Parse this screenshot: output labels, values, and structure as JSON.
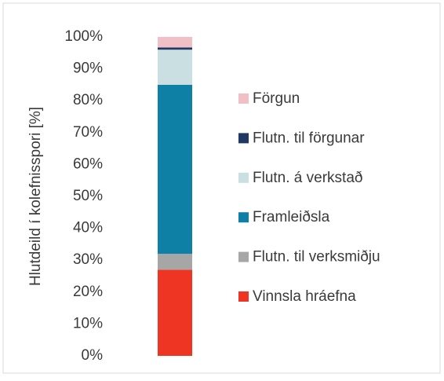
{
  "chart_data": {
    "type": "stacked_bar",
    "y_label": "Hlutdeild í kolefnisspori [%]",
    "categories": [
      null
    ],
    "series": [
      {
        "name": "Vinnsla hráefna",
        "color": "#ee3524",
        "values": [
          27
        ]
      },
      {
        "name": "Flutn. til verksmiðju",
        "color": "#a6a6a6",
        "values": [
          5
        ]
      },
      {
        "name": "Framleiðsla",
        "color": "#0e7fa5",
        "values": [
          53
        ]
      },
      {
        "name": "Flutn. á verkstað",
        "color": "#c9dfe2",
        "values": [
          11
        ]
      },
      {
        "name": "Flutn. til förgunar",
        "color": "#1f3864",
        "values": [
          0.7
        ]
      },
      {
        "name": "Förgun",
        "color": "#f0c0c6",
        "values": [
          3.3
        ]
      }
    ],
    "ylim": [
      0,
      100
    ],
    "yticks": [
      {
        "value": 0,
        "label": "0%"
      },
      {
        "value": 10,
        "label": "10%"
      },
      {
        "value": 20,
        "label": "20%"
      },
      {
        "value": 30,
        "label": "30%"
      },
      {
        "value": 40,
        "label": "40%"
      },
      {
        "value": 50,
        "label": "50%"
      },
      {
        "value": 60,
        "label": "60%"
      },
      {
        "value": 70,
        "label": "70%"
      },
      {
        "value": 80,
        "label": "80%"
      },
      {
        "value": 90,
        "label": "90%"
      },
      {
        "value": 100,
        "label": "100%"
      }
    ],
    "legend": "right"
  }
}
